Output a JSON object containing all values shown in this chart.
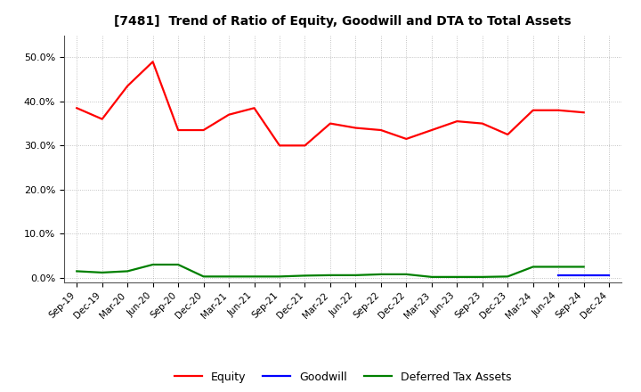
{
  "title": "[7481]  Trend of Ratio of Equity, Goodwill and DTA to Total Assets",
  "x_labels": [
    "Sep-19",
    "Dec-19",
    "Mar-20",
    "Jun-20",
    "Sep-20",
    "Dec-20",
    "Mar-21",
    "Jun-21",
    "Sep-21",
    "Dec-21",
    "Mar-22",
    "Jun-22",
    "Sep-22",
    "Dec-22",
    "Mar-23",
    "Jun-23",
    "Sep-23",
    "Dec-23",
    "Mar-24",
    "Jun-24",
    "Sep-24",
    "Dec-24"
  ],
  "equity": [
    38.5,
    36.0,
    43.5,
    49.0,
    33.5,
    33.5,
    37.0,
    38.5,
    30.0,
    30.0,
    35.0,
    34.0,
    33.5,
    31.5,
    33.5,
    35.5,
    35.0,
    32.5,
    38.0,
    38.0,
    37.5,
    null
  ],
  "goodwill": [
    null,
    null,
    null,
    null,
    null,
    null,
    null,
    null,
    null,
    null,
    null,
    null,
    null,
    null,
    null,
    null,
    null,
    null,
    null,
    0.5,
    0.5,
    0.5
  ],
  "dta": [
    1.5,
    1.2,
    1.5,
    3.0,
    3.0,
    0.3,
    0.3,
    0.3,
    0.3,
    0.5,
    0.6,
    0.6,
    0.8,
    0.8,
    0.2,
    0.2,
    0.2,
    0.3,
    2.5,
    2.5,
    2.5,
    null
  ],
  "equity_color": "#ff0000",
  "goodwill_color": "#0000ff",
  "dta_color": "#008000",
  "background_color": "#ffffff",
  "grid_color": "#aaaaaa",
  "legend_labels": [
    "Equity",
    "Goodwill",
    "Deferred Tax Assets"
  ]
}
